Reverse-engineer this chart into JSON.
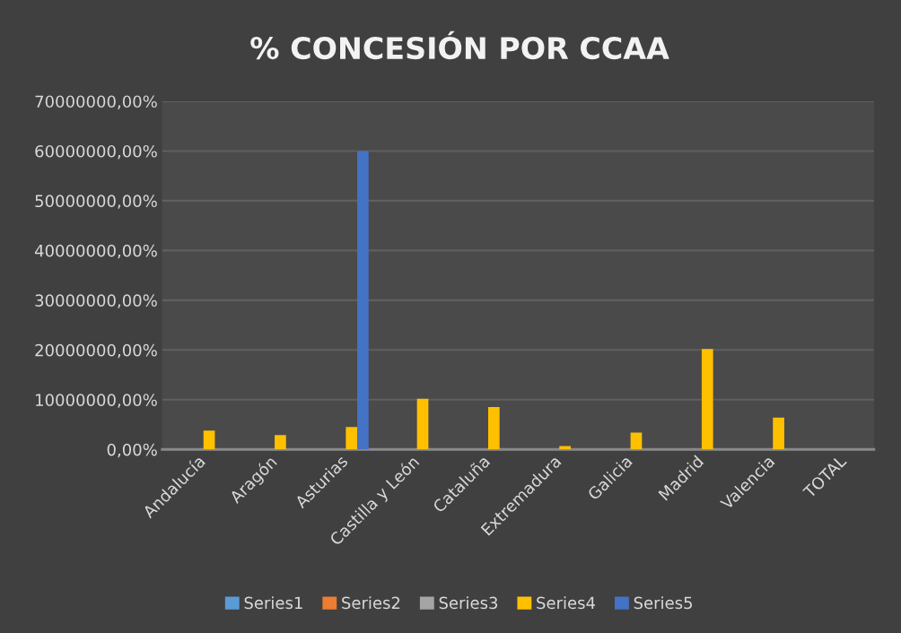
{
  "chart_data": {
    "type": "bar",
    "title": "% CONCESIÓN POR CCAA",
    "categories": [
      "Andalucía",
      "Aragón",
      "Asturias",
      "Castilla y León",
      "Cataluña",
      "Extremadura",
      "Galicia",
      "Madrid",
      "Valencia",
      "TOTAL"
    ],
    "series": [
      {
        "name": "Series1",
        "color": "#5b9bd5",
        "values": [
          0,
          0,
          0,
          0,
          0,
          0,
          0,
          0,
          0,
          0
        ]
      },
      {
        "name": "Series2",
        "color": "#ed7d31",
        "values": [
          0,
          0,
          0,
          0,
          0,
          0,
          0,
          0,
          0,
          0
        ]
      },
      {
        "name": "Series3",
        "color": "#a5a5a5",
        "values": [
          0,
          0,
          0,
          0,
          0,
          0,
          0,
          0,
          0,
          0
        ]
      },
      {
        "name": "Series4",
        "color": "#ffc000",
        "values": [
          3800000,
          2900000,
          4500000,
          10200000,
          8500000,
          700000,
          3400000,
          20200000,
          6400000,
          0
        ]
      },
      {
        "name": "Series5",
        "color": "#4472c4",
        "values": [
          0,
          0,
          60000000,
          0,
          0,
          0,
          0,
          0,
          0,
          0
        ]
      }
    ],
    "ylim": [
      0,
      70000000
    ],
    "yticks": [
      {
        "value": 0,
        "label": "0,00%"
      },
      {
        "value": 10000000,
        "label": "10000000,00%"
      },
      {
        "value": 20000000,
        "label": "20000000,00%"
      },
      {
        "value": 30000000,
        "label": "30000000,00%"
      },
      {
        "value": 40000000,
        "label": "40000000,00%"
      },
      {
        "value": 50000000,
        "label": "50000000,00%"
      },
      {
        "value": 60000000,
        "label": "60000000,00%"
      },
      {
        "value": 70000000,
        "label": "70000000,00%"
      }
    ],
    "grid": "y",
    "legend": "bottom"
  }
}
